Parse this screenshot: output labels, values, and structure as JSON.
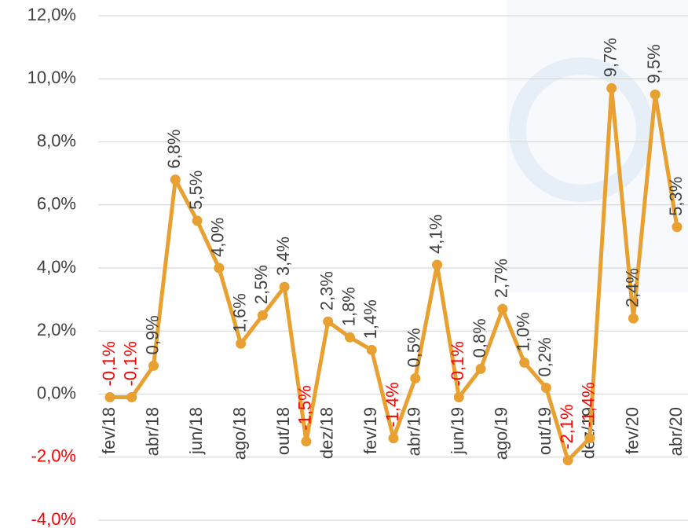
{
  "chart_data": {
    "type": "line",
    "categories": [
      "fev/18",
      null,
      "abr/18",
      null,
      "jun/18",
      null,
      "ago/18",
      null,
      "out/18",
      null,
      "dez/18",
      null,
      "fev/19",
      null,
      "abr/19",
      null,
      "jun/19",
      null,
      "ago/19",
      null,
      "out/19",
      null,
      "dez/19",
      null,
      "fev/20",
      null,
      "abr/20"
    ],
    "series": [
      {
        "color": "#e8a030",
        "values": [
          -0.1,
          -0.1,
          0.9,
          6.8,
          5.5,
          4.0,
          1.6,
          2.5,
          3.4,
          -1.5,
          2.3,
          1.8,
          1.4,
          -1.4,
          0.5,
          4.1,
          -0.1,
          0.8,
          2.7,
          1.0,
          0.2,
          -2.1,
          -1.4,
          9.7,
          2.4,
          9.5,
          5.3
        ],
        "value_labels": [
          "-0,1%",
          "-0,1%",
          "0,9%",
          "6,8%",
          "5,5%",
          "4,0%",
          "1,6%",
          "2,5%",
          "3,4%",
          "-1,5%",
          "2,3%",
          "1,8%",
          "1,4%",
          "-1,4%",
          "0,5%",
          "4,1%",
          "-0,1%",
          "0,8%",
          "2,7%",
          "1,0%",
          "0,2%",
          "-2,1%",
          "-1,4%",
          "9,7%",
          "2,4%",
          "9,5%",
          "5,3%"
        ]
      }
    ],
    "ylim": [
      -4,
      12
    ],
    "yticks": [
      {
        "value": -4,
        "label": "-4,0%"
      },
      {
        "value": -2,
        "label": "-2,0%"
      },
      {
        "value": 0,
        "label": "0,0%"
      },
      {
        "value": 2,
        "label": "2,0%"
      },
      {
        "value": 4,
        "label": "4,0%"
      },
      {
        "value": 6,
        "label": "6,0%"
      },
      {
        "value": 8,
        "label": "8,0%"
      },
      {
        "value": 10,
        "label": "10,0%"
      },
      {
        "value": 12,
        "label": "12,0%"
      }
    ],
    "grid": true,
    "negative_color": "#ff0000"
  }
}
